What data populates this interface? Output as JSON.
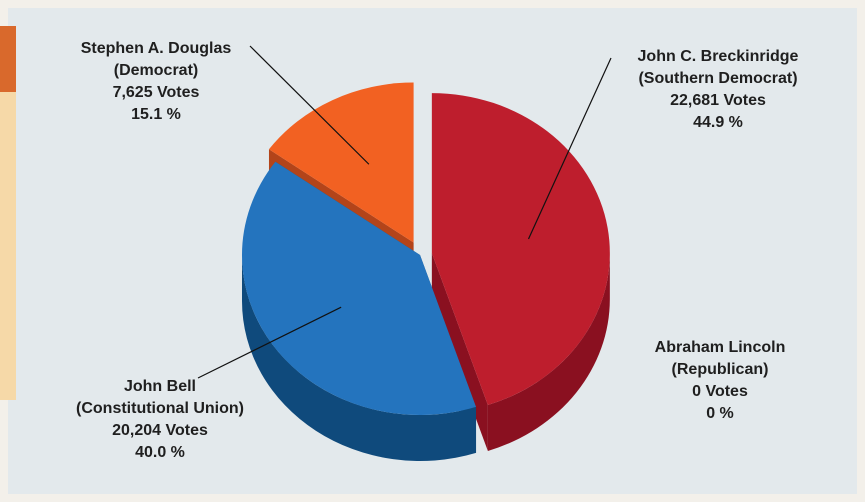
{
  "chart_data": {
    "type": "pie",
    "title": "",
    "slices": [
      {
        "name": "John C. Breckinridge",
        "party": "(Southern Democrat)",
        "votes": 22681,
        "votes_label": "22,681 Votes",
        "percent": 44.9,
        "percent_label": "44.9 %",
        "color": "#be1e2d",
        "side_color": "#8a1020"
      },
      {
        "name": "Abraham Lincoln",
        "party": "(Republican)",
        "votes": 0,
        "votes_label": "0 Votes",
        "percent": 0,
        "percent_label": "0 %",
        "color": "#b01c28",
        "side_color": "#7c0e1a"
      },
      {
        "name": "John Bell",
        "party": "(Constitutional Union)",
        "votes": 20204,
        "votes_label": "20,204 Votes",
        "percent": 40.0,
        "percent_label": "40.0 %",
        "color": "#2474be",
        "side_color": "#0f4a7c"
      },
      {
        "name": "Stephen A. Douglas",
        "party": "(Democrat)",
        "votes": 7625,
        "votes_label": "7,625 Votes",
        "percent": 15.1,
        "percent_label": "15.1 %",
        "color": "#f26122",
        "side_color": "#b3441a"
      }
    ]
  }
}
